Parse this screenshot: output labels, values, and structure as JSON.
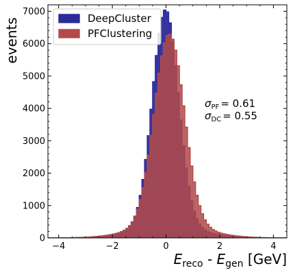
{
  "chart_data": {
    "type": "histogram",
    "title": "",
    "xlabel": {
      "parts": [
        {
          "text": "E",
          "style": "italic"
        },
        {
          "text": "reco",
          "style": "sub"
        },
        {
          "text": " - ",
          "style": "normal"
        },
        {
          "text": "E",
          "style": "italic"
        },
        {
          "text": "gen",
          "style": "sub"
        },
        {
          "text": " [GeV]",
          "style": "normal"
        }
      ]
    },
    "ylabel": "events",
    "xlim": [
      -4.4,
      4.5
    ],
    "ylim": [
      0,
      7200
    ],
    "xticks": [
      -4,
      -2,
      0,
      2,
      4
    ],
    "xtick_labels": [
      "−4",
      "−2",
      "0",
      "2",
      "4"
    ],
    "yticks": [
      0,
      1000,
      2000,
      3000,
      4000,
      5000,
      6000,
      7000
    ],
    "ytick_labels": [
      "0",
      "1000",
      "2000",
      "3000",
      "4000",
      "5000",
      "6000",
      "7000"
    ],
    "grid": false,
    "legend_position": "top-left",
    "series": [
      {
        "name": "DeepCluster",
        "color": "#2b2b9a",
        "mean": -0.02,
        "sigma": 0.48,
        "tail_sigma": 1.2,
        "tail_fraction": 0.06,
        "peak": 7050
      },
      {
        "name": "PFClustering",
        "color": "#b24a4a",
        "mean": 0.12,
        "sigma": 0.55,
        "tail_sigma": 1.3,
        "tail_fraction": 0.07,
        "peak": 6300
      }
    ],
    "binning": {
      "start": -4.5,
      "end": 4.5,
      "width": 0.1
    },
    "annotations": [
      {
        "text": "σ",
        "sub": "PF",
        "value": "= 0.61"
      },
      {
        "text": "σ",
        "sub": "DC",
        "value": "= 0.55"
      }
    ]
  }
}
